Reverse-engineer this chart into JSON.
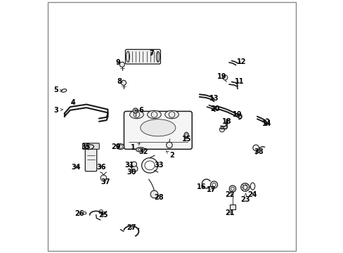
{
  "bg_color": "#ffffff",
  "line_color": "#1a1a1a",
  "text_color": "#000000",
  "figsize": [
    4.89,
    3.6
  ],
  "dpi": 100,
  "label_positions": {
    "1": [
      0.345,
      0.415,
      0.375,
      0.435
    ],
    "2": [
      0.5,
      0.385,
      0.47,
      0.408
    ],
    "3": [
      0.038,
      0.565,
      0.068,
      0.568
    ],
    "4": [
      0.108,
      0.595,
      0.098,
      0.59
    ],
    "5": [
      0.038,
      0.645,
      0.065,
      0.643
    ],
    "6": [
      0.378,
      0.565,
      0.355,
      0.562
    ],
    "7": [
      0.42,
      0.79,
      0.41,
      0.778
    ],
    "8": [
      0.29,
      0.68,
      0.305,
      0.676
    ],
    "9": [
      0.285,
      0.755,
      0.3,
      0.748
    ],
    "10": [
      0.762,
      0.548,
      0.748,
      0.542
    ],
    "11": [
      0.77,
      0.68,
      0.758,
      0.672
    ],
    "12": [
      0.778,
      0.758,
      0.765,
      0.75
    ],
    "13": [
      0.668,
      0.612,
      0.655,
      0.606
    ],
    "14": [
      0.878,
      0.51,
      0.862,
      0.515
    ],
    "15": [
      0.56,
      0.45,
      0.554,
      0.462
    ],
    "16": [
      0.618,
      0.258,
      0.638,
      0.268
    ],
    "17": [
      0.658,
      0.248,
      0.67,
      0.262
    ],
    "18": [
      0.72,
      0.52,
      0.712,
      0.508
    ],
    "19": [
      0.698,
      0.698,
      0.71,
      0.69
    ],
    "20": [
      0.672,
      0.57,
      0.66,
      0.562
    ],
    "21": [
      0.732,
      0.155,
      0.74,
      0.17
    ],
    "22": [
      0.732,
      0.228,
      0.74,
      0.248
    ],
    "23": [
      0.792,
      0.21,
      0.795,
      0.235
    ],
    "24": [
      0.82,
      0.228,
      0.818,
      0.248
    ],
    "25": [
      0.228,
      0.148,
      0.218,
      0.152
    ],
    "26": [
      0.132,
      0.152,
      0.148,
      0.155
    ],
    "27": [
      0.34,
      0.098,
      0.335,
      0.082
    ],
    "28": [
      0.448,
      0.218,
      0.432,
      0.228
    ],
    "29": [
      0.278,
      0.418,
      0.292,
      0.42
    ],
    "30": [
      0.34,
      0.318,
      0.352,
      0.332
    ],
    "31": [
      0.332,
      0.345,
      0.35,
      0.348
    ],
    "32": [
      0.388,
      0.4,
      0.375,
      0.408
    ],
    "33": [
      0.448,
      0.345,
      0.432,
      0.352
    ],
    "34": [
      0.118,
      0.338,
      0.135,
      0.348
    ],
    "35": [
      0.158,
      0.418,
      0.17,
      0.418
    ],
    "36": [
      0.22,
      0.338,
      0.21,
      0.352
    ],
    "37": [
      0.235,
      0.278,
      0.228,
      0.298
    ],
    "38": [
      0.845,
      0.398,
      0.835,
      0.408
    ]
  }
}
